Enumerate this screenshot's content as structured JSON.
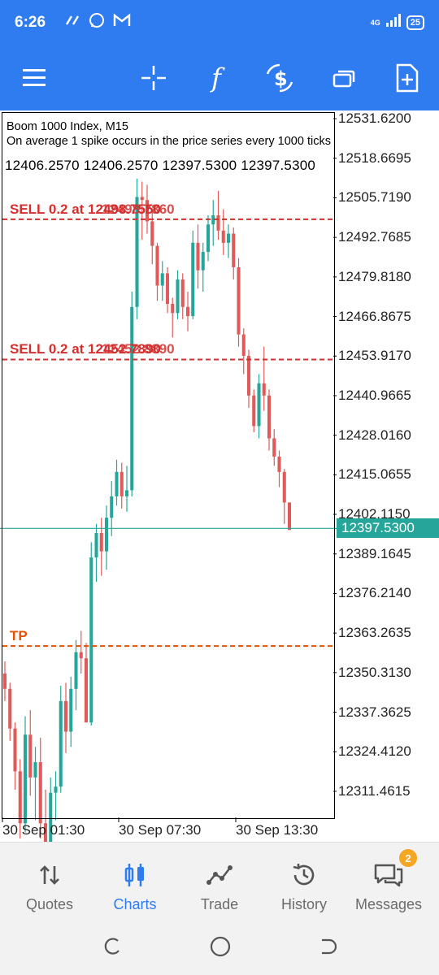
{
  "status_bar": {
    "time": "6:26",
    "network": "4G",
    "battery": "25",
    "icons": [
      "arrows-icon",
      "whatsapp-icon",
      "gmail-icon",
      "signal-icon",
      "battery-icon"
    ]
  },
  "toolbar": {
    "buttons": [
      "menu-icon",
      "crosshair-icon",
      "indicators-icon",
      "trade-dollar-icon",
      "windows-icon",
      "add-object-icon"
    ]
  },
  "chart": {
    "symbol_line": "Boom 1000 Index, M15",
    "description": "On average 1 spike occurs in the price series every 1000 ticks",
    "ohlc": "12406.2570 12406.2570 12397.5300 12397.5300",
    "current_price": "12397.5300",
    "y_labels": [
      "12531.6200",
      "12518.6695",
      "12505.7190",
      "12492.7685",
      "12479.8180",
      "12466.8675",
      "12453.9170",
      "12440.9665",
      "12428.0160",
      "12415.0655",
      "12402.1150",
      "12389.1645",
      "12376.2140",
      "12363.2635",
      "12350.3130",
      "12337.3625",
      "12324.4120",
      "12311.4615"
    ],
    "x_labels": [
      "30 Sep 01:30",
      "30 Sep 07:30",
      "30 Sep 13:30"
    ],
    "levels": [
      {
        "label": "SELL 0.2 at 12498.7550",
        "overlap": "12498.7860",
        "price": 12498.7,
        "color": "#d32f2f"
      },
      {
        "label": "SELL 0.2 at 12452.7890",
        "overlap": "12452.8890",
        "price": 12452.8,
        "color": "#d32f2f"
      },
      {
        "label": "TP",
        "overlap": "",
        "price": 12359.0,
        "color": "#e65100"
      }
    ],
    "colors": {
      "bull": "#26a69a",
      "bear": "#e05a5a",
      "price_line": "#26a69a"
    }
  },
  "chart_data": {
    "type": "candlestick",
    "title": "Boom 1000 Index, M15",
    "ylim": [
      12302.4,
      12534.3
    ],
    "candles": [
      {
        "o": 12350,
        "h": 12354,
        "l": 12341,
        "c": 12345,
        "d": "bear"
      },
      {
        "o": 12345,
        "h": 12347,
        "l": 12328,
        "c": 12332,
        "d": "bear"
      },
      {
        "o": 12332,
        "h": 12334,
        "l": 12312,
        "c": 12318,
        "d": "bear"
      },
      {
        "o": 12318,
        "h": 12322,
        "l": 12296,
        "c": 12301,
        "d": "bear"
      },
      {
        "o": 12301,
        "h": 12336,
        "l": 12298,
        "c": 12330,
        "d": "bull"
      },
      {
        "o": 12330,
        "h": 12338,
        "l": 12310,
        "c": 12316,
        "d": "bear"
      },
      {
        "o": 12316,
        "h": 12326,
        "l": 12302,
        "c": 12321,
        "d": "bull"
      },
      {
        "o": 12321,
        "h": 12329,
        "l": 12296,
        "c": 12301,
        "d": "bear"
      },
      {
        "o": 12301,
        "h": 12312,
        "l": 12286,
        "c": 12292,
        "d": "bear"
      },
      {
        "o": 12292,
        "h": 12316,
        "l": 12283,
        "c": 12311,
        "d": "bull"
      },
      {
        "o": 12311,
        "h": 12318,
        "l": 12302,
        "c": 12313,
        "d": "bull"
      },
      {
        "o": 12313,
        "h": 12346,
        "l": 12311,
        "c": 12341,
        "d": "bull"
      },
      {
        "o": 12341,
        "h": 12347,
        "l": 12324,
        "c": 12331,
        "d": "bear"
      },
      {
        "o": 12331,
        "h": 12349,
        "l": 12326,
        "c": 12345,
        "d": "bull"
      },
      {
        "o": 12345,
        "h": 12361,
        "l": 12338,
        "c": 12357,
        "d": "bull"
      },
      {
        "o": 12357,
        "h": 12364,
        "l": 12350,
        "c": 12355,
        "d": "bear"
      },
      {
        "o": 12355,
        "h": 12360,
        "l": 12334,
        "c": 12334,
        "d": "bear"
      },
      {
        "o": 12334,
        "h": 12393,
        "l": 12333,
        "c": 12388,
        "d": "bull"
      },
      {
        "o": 12388,
        "h": 12399,
        "l": 12380,
        "c": 12396,
        "d": "bull"
      },
      {
        "o": 12396,
        "h": 12401,
        "l": 12382,
        "c": 12390,
        "d": "bear"
      },
      {
        "o": 12390,
        "h": 12405,
        "l": 12384,
        "c": 12401,
        "d": "bull"
      },
      {
        "o": 12401,
        "h": 12413,
        "l": 12395,
        "c": 12408,
        "d": "bull"
      },
      {
        "o": 12408,
        "h": 12420,
        "l": 12405,
        "c": 12416,
        "d": "bull"
      },
      {
        "o": 12416,
        "h": 12419,
        "l": 12404,
        "c": 12408,
        "d": "bear"
      },
      {
        "o": 12408,
        "h": 12418,
        "l": 12403,
        "c": 12410,
        "d": "bull"
      },
      {
        "o": 12410,
        "h": 12475,
        "l": 12408,
        "c": 12470,
        "d": "bull"
      },
      {
        "o": 12470,
        "h": 12512,
        "l": 12466,
        "c": 12506,
        "d": "bull"
      },
      {
        "o": 12506,
        "h": 12511,
        "l": 12492,
        "c": 12505,
        "d": "bear"
      },
      {
        "o": 12505,
        "h": 12510,
        "l": 12494,
        "c": 12498,
        "d": "bear"
      },
      {
        "o": 12498,
        "h": 12501,
        "l": 12484,
        "c": 12490,
        "d": "bear"
      },
      {
        "o": 12490,
        "h": 12491,
        "l": 12472,
        "c": 12477,
        "d": "bear"
      },
      {
        "o": 12477,
        "h": 12485,
        "l": 12472,
        "c": 12481,
        "d": "bull"
      },
      {
        "o": 12481,
        "h": 12483,
        "l": 12468,
        "c": 12471,
        "d": "bear"
      },
      {
        "o": 12471,
        "h": 12473,
        "l": 12460,
        "c": 12468,
        "d": "bear"
      },
      {
        "o": 12468,
        "h": 12482,
        "l": 12466,
        "c": 12479,
        "d": "bull"
      },
      {
        "o": 12479,
        "h": 12481,
        "l": 12466,
        "c": 12470,
        "d": "bear"
      },
      {
        "o": 12470,
        "h": 12475,
        "l": 12462,
        "c": 12467,
        "d": "bear"
      },
      {
        "o": 12467,
        "h": 12495,
        "l": 12466,
        "c": 12491,
        "d": "bull"
      },
      {
        "o": 12491,
        "h": 12497,
        "l": 12476,
        "c": 12482,
        "d": "bear"
      },
      {
        "o": 12482,
        "h": 12491,
        "l": 12475,
        "c": 12488,
        "d": "bull"
      },
      {
        "o": 12488,
        "h": 12500,
        "l": 12485,
        "c": 12497,
        "d": "bull"
      },
      {
        "o": 12497,
        "h": 12505,
        "l": 12490,
        "c": 12500,
        "d": "bull"
      },
      {
        "o": 12500,
        "h": 12508,
        "l": 12492,
        "c": 12495,
        "d": "bear"
      },
      {
        "o": 12495,
        "h": 12502,
        "l": 12487,
        "c": 12491,
        "d": "bear"
      },
      {
        "o": 12491,
        "h": 12497,
        "l": 12486,
        "c": 12494,
        "d": "bull"
      },
      {
        "o": 12494,
        "h": 12496,
        "l": 12479,
        "c": 12483,
        "d": "bear"
      },
      {
        "o": 12483,
        "h": 12486,
        "l": 12457,
        "c": 12461,
        "d": "bear"
      },
      {
        "o": 12461,
        "h": 12463,
        "l": 12448,
        "c": 12454,
        "d": "bear"
      },
      {
        "o": 12454,
        "h": 12456,
        "l": 12437,
        "c": 12441,
        "d": "bear"
      },
      {
        "o": 12441,
        "h": 12443,
        "l": 12429,
        "c": 12431,
        "d": "bear"
      },
      {
        "o": 12431,
        "h": 12448,
        "l": 12427,
        "c": 12445,
        "d": "bull"
      },
      {
        "o": 12445,
        "h": 12457,
        "l": 12436,
        "c": 12441,
        "d": "bear"
      },
      {
        "o": 12441,
        "h": 12443,
        "l": 12423,
        "c": 12427,
        "d": "bear"
      },
      {
        "o": 12427,
        "h": 12430,
        "l": 12418,
        "c": 12421,
        "d": "bear"
      },
      {
        "o": 12421,
        "h": 12423,
        "l": 12411,
        "c": 12416,
        "d": "bear"
      },
      {
        "o": 12416,
        "h": 12417,
        "l": 12399,
        "c": 12406,
        "d": "bear"
      },
      {
        "o": 12406,
        "h": 12406,
        "l": 12397,
        "c": 12397,
        "d": "bear"
      }
    ]
  },
  "bottom_nav": {
    "items": [
      {
        "label": "Quotes",
        "icon": "quotes-icon"
      },
      {
        "label": "Charts",
        "icon": "charts-icon"
      },
      {
        "label": "Trade",
        "icon": "trade-icon"
      },
      {
        "label": "History",
        "icon": "history-icon"
      },
      {
        "label": "Messages",
        "icon": "messages-icon"
      }
    ],
    "active": "Charts",
    "messages_badge": "2"
  },
  "system_nav": {
    "buttons": [
      "recents-icon",
      "home-icon",
      "back-icon"
    ]
  }
}
